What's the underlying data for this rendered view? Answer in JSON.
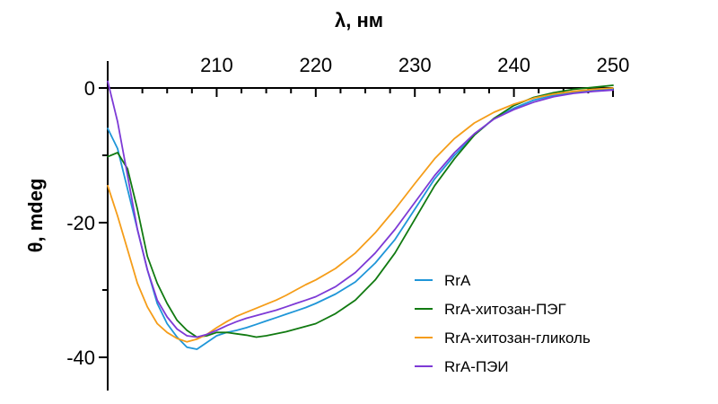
{
  "chart_data": {
    "type": "line",
    "xlabel": "λ, нм",
    "ylabel": "θ, mdeg",
    "xlim": [
      199,
      250
    ],
    "ylim": [
      -45,
      1
    ],
    "x_ticks": [
      210,
      220,
      230,
      240,
      250
    ],
    "y_ticks": [
      0,
      -20,
      -40
    ],
    "x_minor_step": 2.5,
    "y_minor_step": 10,
    "grid": false,
    "legend_position": "bottom-right",
    "series": [
      {
        "name": "RrA",
        "color": "#1f96d8",
        "points": [
          [
            199,
            -6
          ],
          [
            200,
            -9
          ],
          [
            201,
            -15
          ],
          [
            202,
            -21
          ],
          [
            203,
            -27
          ],
          [
            204,
            -32
          ],
          [
            205,
            -35
          ],
          [
            206,
            -37
          ],
          [
            207,
            -38.5
          ],
          [
            208,
            -38.8
          ],
          [
            209,
            -37.8
          ],
          [
            210,
            -36.8
          ],
          [
            211,
            -36.3
          ],
          [
            212,
            -36
          ],
          [
            213,
            -35.6
          ],
          [
            214,
            -35.1
          ],
          [
            215,
            -34.6
          ],
          [
            216,
            -34.1
          ],
          [
            217,
            -33.6
          ],
          [
            218,
            -33.1
          ],
          [
            219,
            -32.6
          ],
          [
            220,
            -32
          ],
          [
            222,
            -30.6
          ],
          [
            224,
            -28.8
          ],
          [
            226,
            -26
          ],
          [
            228,
            -22.5
          ],
          [
            230,
            -18
          ],
          [
            232,
            -13.5
          ],
          [
            234,
            -10
          ],
          [
            236,
            -7
          ],
          [
            238,
            -4.5
          ],
          [
            240,
            -3
          ],
          [
            242,
            -1.8
          ],
          [
            244,
            -1.1
          ],
          [
            246,
            -0.6
          ],
          [
            248,
            -0.3
          ],
          [
            250,
            -0.1
          ]
        ]
      },
      {
        "name": "RrA-хитозан-ПЭГ",
        "color": "#117a11",
        "points": [
          [
            199,
            -10.2
          ],
          [
            200,
            -9.6
          ],
          [
            201,
            -12
          ],
          [
            202,
            -18
          ],
          [
            203,
            -25
          ],
          [
            204,
            -29
          ],
          [
            205,
            -32
          ],
          [
            206,
            -34.5
          ],
          [
            207,
            -36
          ],
          [
            208,
            -37
          ],
          [
            209,
            -36.8
          ],
          [
            210,
            -36.3
          ],
          [
            211,
            -36.3
          ],
          [
            212,
            -36.5
          ],
          [
            213,
            -36.7
          ],
          [
            214,
            -37
          ],
          [
            215,
            -36.8
          ],
          [
            216,
            -36.5
          ],
          [
            217,
            -36.2
          ],
          [
            218,
            -35.8
          ],
          [
            219,
            -35.4
          ],
          [
            220,
            -35
          ],
          [
            222,
            -33.5
          ],
          [
            224,
            -31.5
          ],
          [
            226,
            -28.5
          ],
          [
            228,
            -24.5
          ],
          [
            230,
            -19.5
          ],
          [
            232,
            -14.5
          ],
          [
            234,
            -10.5
          ],
          [
            236,
            -7
          ],
          [
            238,
            -4.5
          ],
          [
            240,
            -2.6
          ],
          [
            242,
            -1.4
          ],
          [
            244,
            -0.7
          ],
          [
            246,
            -0.2
          ],
          [
            248,
            0.1
          ],
          [
            250,
            0.4
          ]
        ]
      },
      {
        "name": "RrA-хитозан-гликоль",
        "color": "#f59d19",
        "points": [
          [
            199,
            -14.5
          ],
          [
            200,
            -19
          ],
          [
            201,
            -24
          ],
          [
            202,
            -29
          ],
          [
            203,
            -32.5
          ],
          [
            204,
            -35
          ],
          [
            205,
            -36.3
          ],
          [
            206,
            -37.2
          ],
          [
            207,
            -37.7
          ],
          [
            208,
            -37.3
          ],
          [
            209,
            -36.6
          ],
          [
            210,
            -35.6
          ],
          [
            211,
            -34.7
          ],
          [
            212,
            -33.9
          ],
          [
            213,
            -33.3
          ],
          [
            214,
            -32.7
          ],
          [
            215,
            -32.1
          ],
          [
            216,
            -31.5
          ],
          [
            217,
            -30.8
          ],
          [
            218,
            -30
          ],
          [
            219,
            -29.2
          ],
          [
            220,
            -28.5
          ],
          [
            222,
            -26.8
          ],
          [
            224,
            -24.5
          ],
          [
            226,
            -21.5
          ],
          [
            228,
            -18
          ],
          [
            230,
            -14.2
          ],
          [
            232,
            -10.5
          ],
          [
            234,
            -7.5
          ],
          [
            236,
            -5.2
          ],
          [
            238,
            -3.6
          ],
          [
            240,
            -2.4
          ],
          [
            242,
            -1.5
          ],
          [
            244,
            -0.9
          ],
          [
            246,
            -0.5
          ],
          [
            248,
            -0.2
          ],
          [
            250,
            0
          ]
        ]
      },
      {
        "name": "RrA-ПЭИ",
        "color": "#7d3ad6",
        "points": [
          [
            199,
            1
          ],
          [
            200,
            -5
          ],
          [
            201,
            -13
          ],
          [
            202,
            -21
          ],
          [
            203,
            -27
          ],
          [
            204,
            -31.5
          ],
          [
            205,
            -34
          ],
          [
            206,
            -35.8
          ],
          [
            207,
            -36.8
          ],
          [
            208,
            -37
          ],
          [
            209,
            -36.6
          ],
          [
            210,
            -36
          ],
          [
            211,
            -35.3
          ],
          [
            212,
            -34.7
          ],
          [
            213,
            -34.2
          ],
          [
            214,
            -33.8
          ],
          [
            215,
            -33.4
          ],
          [
            216,
            -33
          ],
          [
            217,
            -32.5
          ],
          [
            218,
            -32
          ],
          [
            219,
            -31.5
          ],
          [
            220,
            -31
          ],
          [
            222,
            -29.5
          ],
          [
            224,
            -27.4
          ],
          [
            226,
            -24.5
          ],
          [
            228,
            -21
          ],
          [
            230,
            -17
          ],
          [
            232,
            -13
          ],
          [
            234,
            -9.6
          ],
          [
            236,
            -6.8
          ],
          [
            238,
            -4.6
          ],
          [
            240,
            -3.2
          ],
          [
            242,
            -2.1
          ],
          [
            244,
            -1.3
          ],
          [
            246,
            -0.8
          ],
          [
            248,
            -0.5
          ],
          [
            250,
            -0.3
          ]
        ]
      }
    ]
  }
}
